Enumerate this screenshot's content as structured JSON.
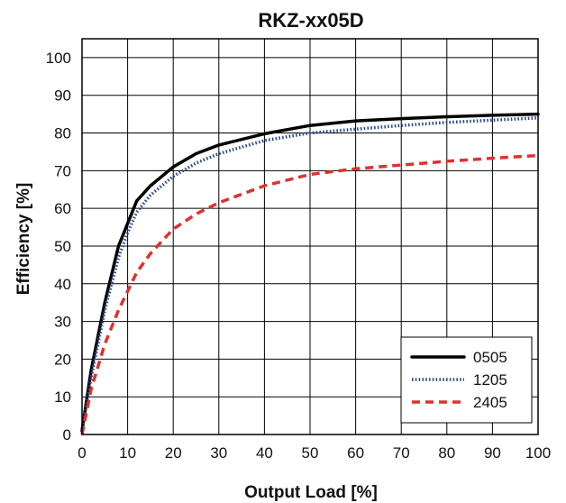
{
  "chart_data": {
    "type": "line",
    "title": "RKZ-xx05D",
    "xlabel": "Output Load [%]",
    "ylabel": "Efficiency [%]",
    "xlim": [
      0,
      100
    ],
    "ylim": [
      0,
      105
    ],
    "xticks": [
      0,
      10,
      20,
      30,
      40,
      50,
      60,
      70,
      80,
      90,
      100
    ],
    "yticks": [
      0,
      10,
      20,
      30,
      40,
      50,
      60,
      70,
      80,
      90,
      100
    ],
    "grid": true,
    "legend_position": "bottom-right",
    "series": [
      {
        "name": "0505",
        "color": "#000000",
        "style": "solid",
        "x": [
          0,
          2,
          5,
          8,
          10,
          12,
          15,
          20,
          25,
          30,
          40,
          50,
          60,
          70,
          80,
          90,
          100
        ],
        "y": [
          1,
          17,
          35,
          50,
          56,
          62,
          66,
          71,
          74.5,
          76.8,
          79.8,
          82,
          83.2,
          83.8,
          84.3,
          84.7,
          85
        ]
      },
      {
        "name": "1205",
        "color": "#2b4a8c",
        "style": "dotted",
        "x": [
          0,
          2,
          5,
          8,
          10,
          12,
          15,
          20,
          25,
          30,
          40,
          50,
          60,
          70,
          80,
          90,
          100
        ],
        "y": [
          1,
          15,
          33,
          47,
          53.5,
          59,
          63.5,
          68.5,
          72,
          74.5,
          78,
          80,
          81,
          82,
          82.8,
          83.4,
          84
        ]
      },
      {
        "name": "2405",
        "color": "#e03030",
        "style": "dashed",
        "x": [
          0,
          2,
          5,
          8,
          10,
          12,
          15,
          20,
          25,
          30,
          40,
          50,
          60,
          70,
          80,
          90,
          100
        ],
        "y": [
          0,
          12,
          24,
          33,
          38,
          43,
          48,
          54.5,
          58.5,
          61.5,
          66,
          69,
          70.5,
          71.5,
          72.5,
          73.3,
          74
        ]
      }
    ]
  }
}
